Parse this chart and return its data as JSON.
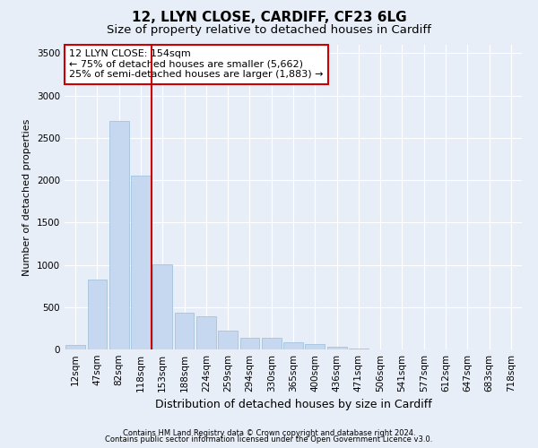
{
  "title": "12, LLYN CLOSE, CARDIFF, CF23 6LG",
  "subtitle": "Size of property relative to detached houses in Cardiff",
  "xlabel": "Distribution of detached houses by size in Cardiff",
  "ylabel": "Number of detached properties",
  "categories": [
    "12sqm",
    "47sqm",
    "82sqm",
    "118sqm",
    "153sqm",
    "188sqm",
    "224sqm",
    "259sqm",
    "294sqm",
    "330sqm",
    "365sqm",
    "400sqm",
    "436sqm",
    "471sqm",
    "506sqm",
    "541sqm",
    "577sqm",
    "612sqm",
    "647sqm",
    "683sqm",
    "718sqm"
  ],
  "values": [
    50,
    830,
    2700,
    2050,
    1010,
    430,
    390,
    220,
    140,
    140,
    90,
    60,
    30,
    10,
    0,
    0,
    0,
    0,
    0,
    0,
    0
  ],
  "bar_color": "#c5d8f0",
  "bar_edge_color": "#9bbcd8",
  "background_color": "#e8eef8",
  "grid_color": "#ffffff",
  "red_line_x": 3.51,
  "annotation_text": "12 LLYN CLOSE: 154sqm\n← 75% of detached houses are smaller (5,662)\n25% of semi-detached houses are larger (1,883) →",
  "annotation_box_color": "#ffffff",
  "annotation_border_color": "#cc0000",
  "ylim": [
    0,
    3600
  ],
  "yticks": [
    0,
    500,
    1000,
    1500,
    2000,
    2500,
    3000,
    3500
  ],
  "footnote1": "Contains HM Land Registry data © Crown copyright and database right 2024.",
  "footnote2": "Contains public sector information licensed under the Open Government Licence v3.0.",
  "title_fontsize": 11,
  "subtitle_fontsize": 9.5,
  "tick_fontsize": 7.5,
  "ylabel_fontsize": 8,
  "xlabel_fontsize": 9,
  "annotation_fontsize": 8,
  "footnote_fontsize": 6
}
